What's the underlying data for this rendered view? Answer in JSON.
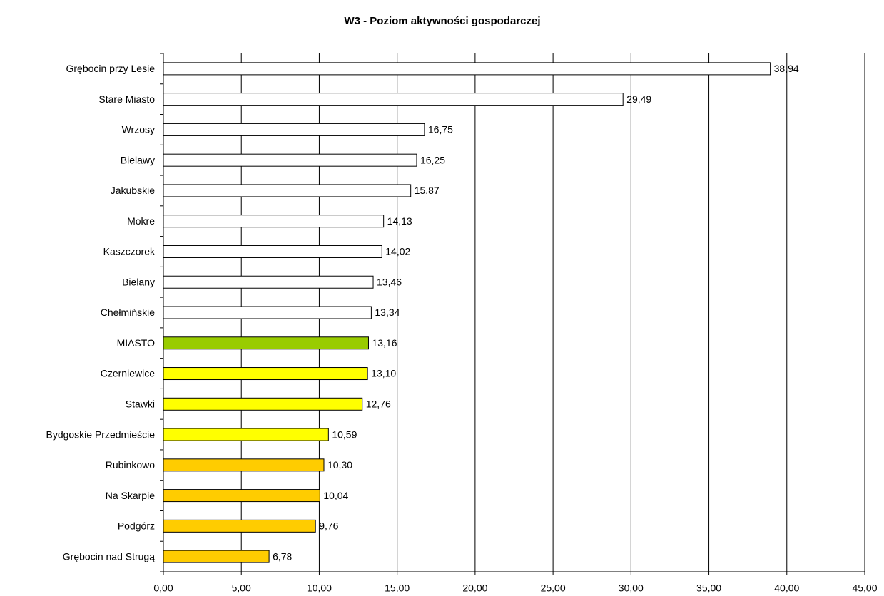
{
  "chart_data": {
    "type": "hbar",
    "title": "W3 - Poziom aktywności gospodarczej",
    "categories": [
      "Grębocin przy Lesie",
      "Stare Miasto",
      "Wrzosy",
      "Bielawy",
      "Jakubskie",
      "Mokre",
      "Kaszczorek",
      "Bielany",
      "Chełmińskie",
      "MIASTO",
      "Czerniewice",
      "Stawki",
      "Bydgoskie Przedmieście",
      "Rubinkowo",
      "Na Skarpie",
      "Podgórz",
      "Grębocin nad Strugą"
    ],
    "values": [
      38.94,
      29.49,
      16.75,
      16.25,
      15.87,
      14.13,
      14.02,
      13.46,
      13.34,
      13.16,
      13.1,
      12.76,
      10.59,
      10.3,
      10.04,
      9.76,
      6.78
    ],
    "value_labels": [
      "38,94",
      "29,49",
      "16,75",
      "16,25",
      "15,87",
      "14,13",
      "14,02",
      "13,46",
      "13,34",
      "13,16",
      "13,10",
      "12,76",
      "10,59",
      "10,30",
      "10,04",
      "9,76",
      "6,78"
    ],
    "colors": [
      "#ffffff",
      "#ffffff",
      "#ffffff",
      "#ffffff",
      "#ffffff",
      "#ffffff",
      "#ffffff",
      "#ffffff",
      "#ffffff",
      "#99cc00",
      "#ffff00",
      "#ffff00",
      "#ffff00",
      "#ffcc00",
      "#ffcc00",
      "#ffcc00",
      "#ffcc00"
    ],
    "xlim": [
      0,
      45
    ],
    "xticks": [
      {
        "value": 0,
        "label": "0,00"
      },
      {
        "value": 5,
        "label": "5,00"
      },
      {
        "value": 10,
        "label": "10,00"
      },
      {
        "value": 15,
        "label": "15,00"
      },
      {
        "value": 20,
        "label": "20,00"
      },
      {
        "value": 25,
        "label": "25,00"
      },
      {
        "value": 30,
        "label": "30,00"
      },
      {
        "value": 35,
        "label": "35,00"
      },
      {
        "value": 40,
        "label": "40,00"
      },
      {
        "value": 45,
        "label": "45,00"
      }
    ],
    "grid": true
  }
}
